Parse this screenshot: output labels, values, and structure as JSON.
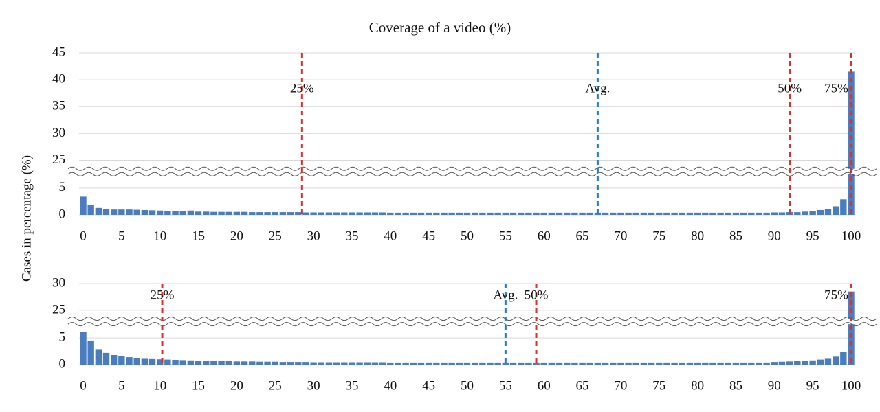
{
  "chart_data": [
    {
      "type": "bar",
      "title": "Coverage of a video (%)",
      "y_label": "Cases in percentage (%)",
      "color": "#4a7cc0",
      "x": [
        0,
        1,
        2,
        3,
        4,
        5,
        6,
        7,
        8,
        9,
        10,
        11,
        12,
        13,
        14,
        15,
        16,
        17,
        18,
        19,
        20,
        21,
        22,
        23,
        24,
        25,
        26,
        27,
        28,
        29,
        30,
        31,
        32,
        33,
        34,
        35,
        36,
        37,
        38,
        39,
        40,
        41,
        42,
        43,
        44,
        45,
        46,
        47,
        48,
        49,
        50,
        51,
        52,
        53,
        54,
        55,
        56,
        57,
        58,
        59,
        60,
        61,
        62,
        63,
        64,
        65,
        66,
        67,
        68,
        69,
        70,
        71,
        72,
        73,
        74,
        75,
        76,
        77,
        78,
        79,
        80,
        81,
        82,
        83,
        84,
        85,
        86,
        87,
        88,
        89,
        90,
        91,
        92,
        93,
        94,
        95,
        96,
        97,
        98,
        99,
        100
      ],
      "values": [
        3.4,
        1.8,
        1.3,
        1.1,
        1.0,
        1.0,
        1.0,
        0.95,
        0.9,
        0.85,
        0.8,
        0.75,
        0.7,
        0.65,
        0.8,
        0.6,
        0.6,
        0.55,
        0.55,
        0.55,
        0.55,
        0.55,
        0.5,
        0.5,
        0.5,
        0.5,
        0.5,
        0.5,
        0.5,
        0.45,
        0.45,
        0.45,
        0.45,
        0.45,
        0.45,
        0.45,
        0.45,
        0.45,
        0.45,
        0.45,
        0.4,
        0.4,
        0.4,
        0.4,
        0.4,
        0.4,
        0.4,
        0.4,
        0.4,
        0.4,
        0.4,
        0.4,
        0.4,
        0.4,
        0.4,
        0.4,
        0.4,
        0.4,
        0.4,
        0.4,
        0.4,
        0.4,
        0.4,
        0.4,
        0.4,
        0.4,
        0.4,
        0.4,
        0.4,
        0.4,
        0.4,
        0.4,
        0.4,
        0.4,
        0.4,
        0.4,
        0.4,
        0.4,
        0.4,
        0.4,
        0.4,
        0.4,
        0.4,
        0.4,
        0.4,
        0.4,
        0.4,
        0.4,
        0.4,
        0.4,
        0.45,
        0.45,
        0.5,
        0.5,
        0.6,
        0.7,
        0.9,
        1.1,
        1.6,
        2.9,
        41.5
      ],
      "xlim": [
        0,
        100
      ],
      "xticks": [
        0,
        5,
        10,
        15,
        20,
        25,
        30,
        35,
        40,
        45,
        50,
        55,
        60,
        65,
        70,
        75,
        80,
        85,
        90,
        95,
        100
      ],
      "ylim": [
        0,
        45
      ],
      "y_break": [
        7.5,
        23.5
      ],
      "yticks": [
        0,
        5,
        25,
        30,
        35,
        40,
        45
      ],
      "grid": true,
      "markers": [
        {
          "label": "25%",
          "x": 28.5,
          "color": "#e0302a",
          "anchor": "middle"
        },
        {
          "label": "Avg.",
          "x": 67,
          "color": "#1f7be0",
          "anchor": "middle"
        },
        {
          "label": "50%",
          "x": 92,
          "color": "#e0302a",
          "anchor": "middle"
        },
        {
          "label": "75%",
          "x": 100,
          "color": "#e0302a",
          "anchor": "end"
        }
      ]
    },
    {
      "type": "bar",
      "color": "#4a7cc0",
      "x": [
        0,
        1,
        2,
        3,
        4,
        5,
        6,
        7,
        8,
        9,
        10,
        11,
        12,
        13,
        14,
        15,
        16,
        17,
        18,
        19,
        20,
        21,
        22,
        23,
        24,
        25,
        26,
        27,
        28,
        29,
        30,
        31,
        32,
        33,
        34,
        35,
        36,
        37,
        38,
        39,
        40,
        41,
        42,
        43,
        44,
        45,
        46,
        47,
        48,
        49,
        50,
        51,
        52,
        53,
        54,
        55,
        56,
        57,
        58,
        59,
        60,
        61,
        62,
        63,
        64,
        65,
        66,
        67,
        68,
        69,
        70,
        71,
        72,
        73,
        74,
        75,
        76,
        77,
        78,
        79,
        80,
        81,
        82,
        83,
        84,
        85,
        86,
        87,
        88,
        89,
        90,
        91,
        92,
        93,
        94,
        95,
        96,
        97,
        98,
        99,
        100
      ],
      "values": [
        6.1,
        4.5,
        2.9,
        2.2,
        1.8,
        1.6,
        1.4,
        1.25,
        1.1,
        1.05,
        1.0,
        0.95,
        0.9,
        0.85,
        0.8,
        0.75,
        0.7,
        0.7,
        0.65,
        0.65,
        0.6,
        0.6,
        0.6,
        0.55,
        0.55,
        0.55,
        0.5,
        0.5,
        0.5,
        0.5,
        0.45,
        0.45,
        0.45,
        0.45,
        0.45,
        0.45,
        0.45,
        0.45,
        0.45,
        0.45,
        0.4,
        0.4,
        0.4,
        0.4,
        0.4,
        0.4,
        0.4,
        0.4,
        0.4,
        0.4,
        0.4,
        0.4,
        0.4,
        0.4,
        0.4,
        0.4,
        0.4,
        0.4,
        0.4,
        0.4,
        0.4,
        0.4,
        0.4,
        0.4,
        0.4,
        0.4,
        0.4,
        0.4,
        0.4,
        0.4,
        0.4,
        0.4,
        0.4,
        0.4,
        0.4,
        0.4,
        0.4,
        0.4,
        0.4,
        0.4,
        0.4,
        0.4,
        0.4,
        0.4,
        0.4,
        0.4,
        0.4,
        0.4,
        0.4,
        0.4,
        0.5,
        0.55,
        0.6,
        0.65,
        0.7,
        0.8,
        0.95,
        1.1,
        1.5,
        2.4,
        28.5
      ],
      "xlim": [
        0,
        100
      ],
      "xticks": [
        0,
        5,
        10,
        15,
        20,
        25,
        30,
        35,
        40,
        45,
        50,
        55,
        60,
        65,
        70,
        75,
        80,
        85,
        90,
        95,
        100
      ],
      "ylim": [
        0,
        30
      ],
      "y_break": [
        7.5,
        23.5
      ],
      "yticks": [
        0,
        5,
        25,
        30
      ],
      "grid": true,
      "markers": [
        {
          "label": "25%",
          "x": 10.3,
          "color": "#e0302a",
          "anchor": "middle"
        },
        {
          "label": "Avg.",
          "x": 55,
          "color": "#1f7be0",
          "anchor": "middle"
        },
        {
          "label": "50%",
          "x": 59,
          "color": "#e0302a",
          "anchor": "middle"
        },
        {
          "label": "75%",
          "x": 100,
          "color": "#e0302a",
          "anchor": "end"
        }
      ]
    }
  ]
}
